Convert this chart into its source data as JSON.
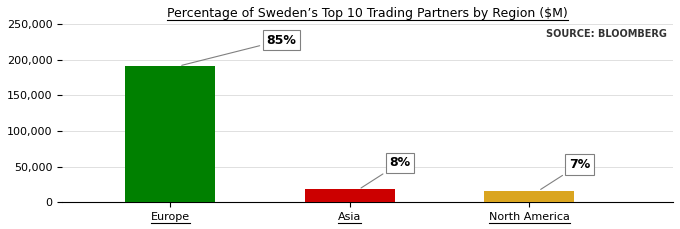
{
  "title": "Percentage of Sweden’s Top 10 Trading Partners by Region ($M)",
  "categories": [
    "Europe",
    "Asia",
    "North America"
  ],
  "values": [
    191000,
    18000,
    16000
  ],
  "colors": [
    "#008000",
    "#CC0000",
    "#DAA520"
  ],
  "labels": [
    "85%",
    "8%",
    "7%"
  ],
  "ylim": [
    0,
    250000
  ],
  "yticks": [
    0,
    50000,
    100000,
    150000,
    200000,
    250000
  ],
  "source_text": "SOURCE: BLOOMBERG",
  "bar_width": 0.5,
  "title_fontsize": 9,
  "tick_label_fontsize": 8,
  "source_fontsize": 7,
  "label_fontsize": 9
}
